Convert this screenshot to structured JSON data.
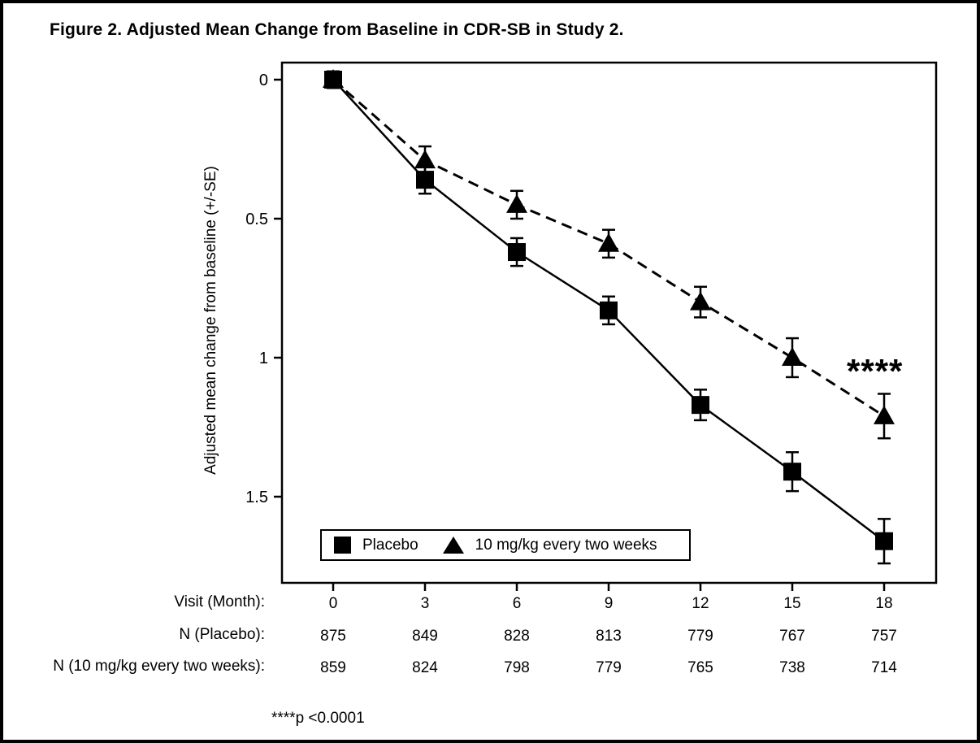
{
  "figure": {
    "title": "Figure 2. Adjusted Mean Change from Baseline in CDR-SB in Study 2."
  },
  "chart_data": {
    "type": "line",
    "title": "Figure 2. Adjusted Mean Change from Baseline in CDR-SB in Study 2.",
    "ylabel": "Adjusted mean change from baseline (+/-SE)",
    "x_row_label": "Visit (Month):",
    "x": [
      0,
      3,
      6,
      9,
      12,
      15,
      18
    ],
    "y_axis": {
      "ticks": [
        0,
        0.5,
        1,
        1.5
      ],
      "tick_labels": [
        "0",
        "0.5",
        "1",
        "1.5"
      ],
      "inverted": true,
      "range": [
        -0.06,
        1.81
      ]
    },
    "grid": false,
    "series": [
      {
        "name": "Placebo",
        "marker": "square",
        "line": "solid",
        "values": [
          0,
          0.36,
          0.62,
          0.83,
          1.17,
          1.41,
          1.66
        ],
        "se": [
          0.03,
          0.05,
          0.05,
          0.05,
          0.055,
          0.07,
          0.08
        ]
      },
      {
        "name": "10 mg/kg every two weeks",
        "marker": "triangle",
        "line": "dashed",
        "values": [
          0,
          0.29,
          0.45,
          0.59,
          0.8,
          1.0,
          1.21
        ],
        "se": [
          0.03,
          0.05,
          0.05,
          0.05,
          0.055,
          0.07,
          0.08
        ]
      }
    ],
    "legend": {
      "position": "inside-bottom-left",
      "items": [
        {
          "label": "Placebo",
          "marker": "square"
        },
        {
          "label": "10 mg/kg every two weeks",
          "marker": "triangle"
        }
      ]
    },
    "n_rows": [
      {
        "label": "N (Placebo):",
        "values": [
          "875",
          "849",
          "828",
          "813",
          "779",
          "767",
          "757"
        ]
      },
      {
        "label": "N (10 mg/kg every two weeks):",
        "values": [
          "859",
          "824",
          "798",
          "779",
          "765",
          "738",
          "714"
        ]
      }
    ],
    "significance_annotation": "****",
    "footnote": "****p <0.0001",
    "colors": {
      "foreground": "#000000",
      "background": "#ffffff"
    }
  }
}
